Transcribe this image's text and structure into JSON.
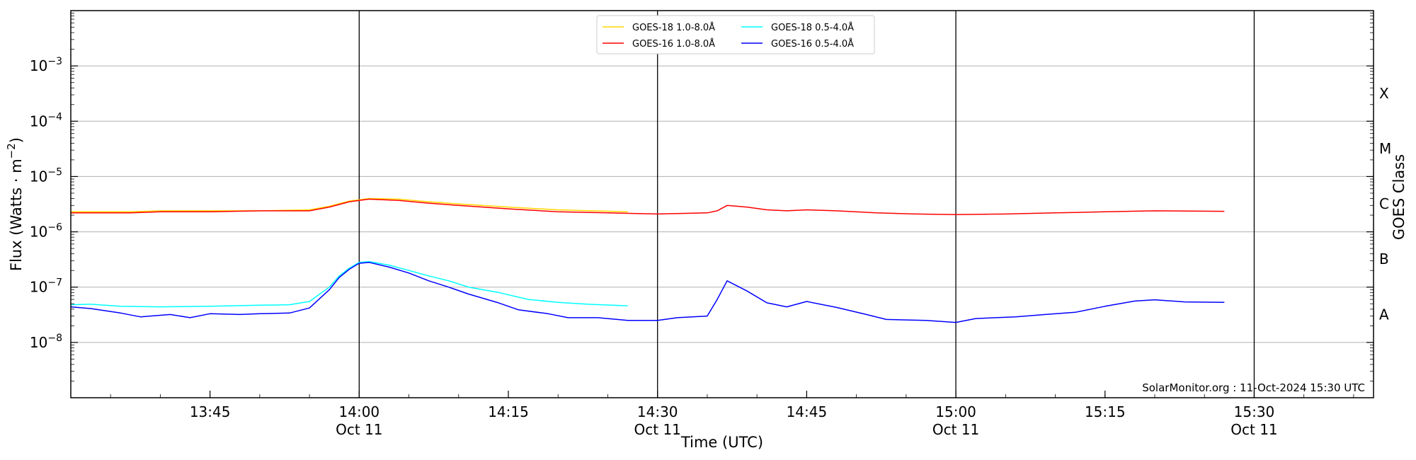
{
  "chart_data": {
    "type": "line",
    "xlabel": "Time (UTC)",
    "ylabel": "Flux (Watts · m⁻²)",
    "y2label": "GOES Class",
    "yscale": "log",
    "ylim": [
      1e-09,
      0.01
    ],
    "xlim": [
      "13:31",
      "15:42"
    ],
    "x_ticks": [
      {
        "time": "13:45",
        "label": "13:45",
        "date": ""
      },
      {
        "time": "14:00",
        "label": "14:00",
        "date": "Oct 11"
      },
      {
        "time": "14:15",
        "label": "14:15",
        "date": ""
      },
      {
        "time": "14:30",
        "label": "14:30",
        "date": "Oct 11"
      },
      {
        "time": "14:45",
        "label": "14:45",
        "date": ""
      },
      {
        "time": "15:00",
        "label": "15:00",
        "date": "Oct 11"
      },
      {
        "time": "15:15",
        "label": "15:15",
        "date": ""
      },
      {
        "time": "15:30",
        "label": "15:30",
        "date": "Oct 11"
      }
    ],
    "y_ticks": [
      {
        "value": 1e-08,
        "base": "10",
        "exp": "−8"
      },
      {
        "value": 1e-07,
        "base": "10",
        "exp": "−7"
      },
      {
        "value": 1e-06,
        "base": "10",
        "exp": "−6"
      },
      {
        "value": 1e-05,
        "base": "10",
        "exp": "−5"
      },
      {
        "value": 0.0001,
        "base": "10",
        "exp": "−4"
      },
      {
        "value": 0.001,
        "base": "10",
        "exp": "−3"
      }
    ],
    "goes_classes": [
      {
        "label": "A",
        "value": 3.2e-08
      },
      {
        "label": "B",
        "value": 3.2e-07
      },
      {
        "label": "C",
        "value": 3.2e-06
      },
      {
        "label": "M",
        "value": 3.2e-05
      },
      {
        "label": "X",
        "value": 0.00032
      }
    ],
    "grid": {
      "horizontal": true,
      "vertical_day_lines": [
        "14:00",
        "14:30",
        "15:00",
        "15:30"
      ]
    },
    "legend_placement": "top-center",
    "legend": [
      {
        "label": "GOES-18 1.0-8.0Å",
        "color": "#ffd700",
        "series": 0
      },
      {
        "label": "GOES-18 0.5-4.0Å",
        "color": "#00ffff",
        "series": 2
      },
      {
        "label": "GOES-16 1.0-8.0Å",
        "color": "#ff0000",
        "series": 1
      },
      {
        "label": "GOES-16 0.5-4.0Å",
        "color": "#0000ff",
        "series": 3
      }
    ],
    "series": [
      {
        "name": "GOES-18 1.0-8.0Å",
        "color": "#ffd700",
        "points": [
          [
            "13:31",
            2.3e-06
          ],
          [
            "13:37",
            2.3e-06
          ],
          [
            "13:40",
            2.4e-06
          ],
          [
            "13:45",
            2.4e-06
          ],
          [
            "13:50",
            2.4e-06
          ],
          [
            "13:55",
            2.5e-06
          ],
          [
            "13:57",
            2.9e-06
          ],
          [
            "13:59",
            3.6e-06
          ],
          [
            "14:01",
            4e-06
          ],
          [
            "14:04",
            3.9e-06
          ],
          [
            "14:07",
            3.5e-06
          ],
          [
            "14:10",
            3.2e-06
          ],
          [
            "14:15",
            2.8e-06
          ],
          [
            "14:20",
            2.5e-06
          ],
          [
            "14:27",
            2.3e-06
          ]
        ]
      },
      {
        "name": "GOES-16 1.0-8.0Å",
        "color": "#ff0000",
        "points": [
          [
            "13:31",
            2.2e-06
          ],
          [
            "13:37",
            2.2e-06
          ],
          [
            "13:40",
            2.3e-06
          ],
          [
            "13:45",
            2.3e-06
          ],
          [
            "13:50",
            2.4e-06
          ],
          [
            "13:55",
            2.4e-06
          ],
          [
            "13:57",
            2.8e-06
          ],
          [
            "13:59",
            3.5e-06
          ],
          [
            "14:01",
            3.9e-06
          ],
          [
            "14:04",
            3.7e-06
          ],
          [
            "14:07",
            3.3e-06
          ],
          [
            "14:10",
            3e-06
          ],
          [
            "14:15",
            2.6e-06
          ],
          [
            "14:20",
            2.3e-06
          ],
          [
            "14:25",
            2.2e-06
          ],
          [
            "14:30",
            2.1e-06
          ],
          [
            "14:35",
            2.2e-06
          ],
          [
            "14:36",
            2.4e-06
          ],
          [
            "14:37",
            3e-06
          ],
          [
            "14:39",
            2.8e-06
          ],
          [
            "14:41",
            2.5e-06
          ],
          [
            "14:43",
            2.4e-06
          ],
          [
            "14:45",
            2.5e-06
          ],
          [
            "14:48",
            2.4e-06
          ],
          [
            "14:52",
            2.2e-06
          ],
          [
            "14:56",
            2.1e-06
          ],
          [
            "15:00",
            2.05e-06
          ],
          [
            "15:05",
            2.1e-06
          ],
          [
            "15:10",
            2.2e-06
          ],
          [
            "15:15",
            2.3e-06
          ],
          [
            "15:20",
            2.4e-06
          ],
          [
            "15:27",
            2.35e-06
          ]
        ]
      },
      {
        "name": "GOES-18 0.5-4.0Å",
        "color": "#00ffff",
        "points": [
          [
            "13:31",
            4.8e-08
          ],
          [
            "13:33",
            4.9e-08
          ],
          [
            "13:36",
            4.5e-08
          ],
          [
            "13:40",
            4.4e-08
          ],
          [
            "13:45",
            4.5e-08
          ],
          [
            "13:50",
            4.7e-08
          ],
          [
            "13:53",
            4.8e-08
          ],
          [
            "13:55",
            5.5e-08
          ],
          [
            "13:57",
            1e-07
          ],
          [
            "13:58",
            1.6e-07
          ],
          [
            "13:59",
            2.2e-07
          ],
          [
            "14:00",
            2.8e-07
          ],
          [
            "14:01",
            2.9e-07
          ],
          [
            "14:03",
            2.5e-07
          ],
          [
            "14:05",
            2e-07
          ],
          [
            "14:07",
            1.6e-07
          ],
          [
            "14:09",
            1.3e-07
          ],
          [
            "14:11",
            1e-07
          ],
          [
            "14:14",
            8e-08
          ],
          [
            "14:17",
            6e-08
          ],
          [
            "14:20",
            5.3e-08
          ],
          [
            "14:23",
            4.9e-08
          ],
          [
            "14:27",
            4.6e-08
          ]
        ]
      },
      {
        "name": "GOES-16 0.5-4.0Å",
        "color": "#0000ff",
        "points": [
          [
            "13:31",
            4.4e-08
          ],
          [
            "13:33",
            4.1e-08
          ],
          [
            "13:36",
            3.4e-08
          ],
          [
            "13:38",
            2.9e-08
          ],
          [
            "13:41",
            3.2e-08
          ],
          [
            "13:43",
            2.8e-08
          ],
          [
            "13:45",
            3.3e-08
          ],
          [
            "13:48",
            3.2e-08
          ],
          [
            "13:50",
            3.3e-08
          ],
          [
            "13:53",
            3.4e-08
          ],
          [
            "13:55",
            4.2e-08
          ],
          [
            "13:57",
            9e-08
          ],
          [
            "13:58",
            1.5e-07
          ],
          [
            "13:59",
            2.1e-07
          ],
          [
            "14:00",
            2.7e-07
          ],
          [
            "14:01",
            2.8e-07
          ],
          [
            "14:03",
            2.3e-07
          ],
          [
            "14:05",
            1.8e-07
          ],
          [
            "14:07",
            1.3e-07
          ],
          [
            "14:09",
            1e-07
          ],
          [
            "14:11",
            7.5e-08
          ],
          [
            "14:14",
            5.2e-08
          ],
          [
            "14:16",
            3.9e-08
          ],
          [
            "14:19",
            3.3e-08
          ],
          [
            "14:21",
            2.8e-08
          ],
          [
            "14:24",
            2.8e-08
          ],
          [
            "14:27",
            2.5e-08
          ],
          [
            "14:30",
            2.5e-08
          ],
          [
            "14:32",
            2.8e-08
          ],
          [
            "14:35",
            3e-08
          ],
          [
            "14:36",
            6e-08
          ],
          [
            "14:37",
            1.3e-07
          ],
          [
            "14:39",
            8.5e-08
          ],
          [
            "14:41",
            5.2e-08
          ],
          [
            "14:43",
            4.4e-08
          ],
          [
            "14:45",
            5.5e-08
          ],
          [
            "14:48",
            4.3e-08
          ],
          [
            "14:51",
            3.2e-08
          ],
          [
            "14:53",
            2.6e-08
          ],
          [
            "14:57",
            2.5e-08
          ],
          [
            "15:00",
            2.3e-08
          ],
          [
            "15:02",
            2.7e-08
          ],
          [
            "15:06",
            2.9e-08
          ],
          [
            "15:09",
            3.2e-08
          ],
          [
            "15:12",
            3.5e-08
          ],
          [
            "15:15",
            4.5e-08
          ],
          [
            "15:18",
            5.6e-08
          ],
          [
            "15:20",
            5.9e-08
          ],
          [
            "15:23",
            5.4e-08
          ],
          [
            "15:27",
            5.3e-08
          ]
        ]
      }
    ],
    "footer": "SolarMonitor.org : 11-Oct-2024 15:30 UTC"
  }
}
